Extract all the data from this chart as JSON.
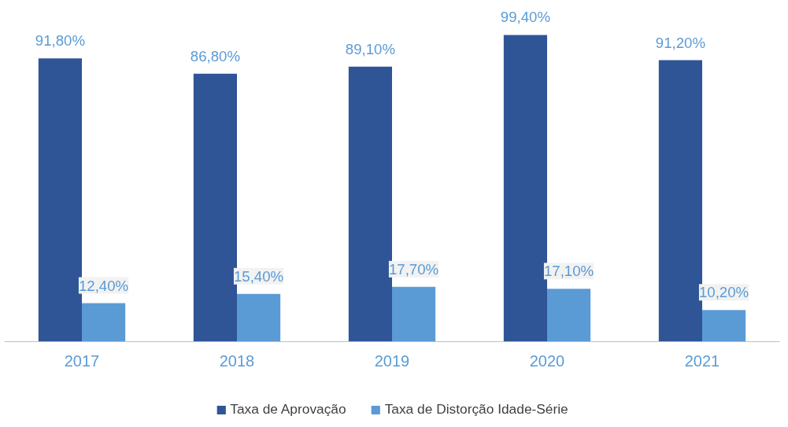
{
  "chart_data": {
    "type": "bar",
    "categories": [
      "2017",
      "2018",
      "2019",
      "2020",
      "2021"
    ],
    "series": [
      {
        "name": "Taxa de Aprovação",
        "color": "#2f5597",
        "values": [
          91.8,
          86.8,
          89.1,
          99.4,
          91.2
        ],
        "value_labels": [
          "91,80%",
          "86,80%",
          "89,10%",
          "99,40%",
          "91,20%"
        ]
      },
      {
        "name": "Taxa de Distorção Idade-Série",
        "color": "#5b9bd5",
        "values": [
          12.4,
          15.4,
          17.7,
          17.1,
          10.2
        ],
        "value_labels": [
          "12,40%",
          "15,40%",
          "17,70%",
          "17,10%",
          "10,20%"
        ]
      }
    ],
    "legend": "bottom"
  }
}
